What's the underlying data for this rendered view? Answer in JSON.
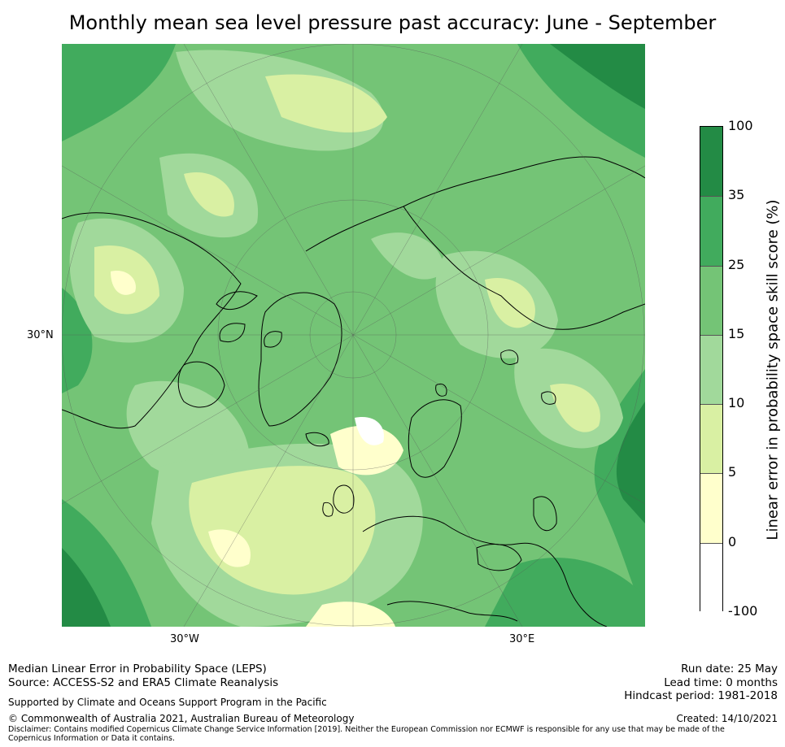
{
  "title": "Monthly mean sea level pressure past accuracy: June - September",
  "map": {
    "lat_labels": [
      {
        "text": "30°N"
      }
    ],
    "lon_labels": [
      {
        "text": "30°W"
      },
      {
        "text": "30°E"
      }
    ]
  },
  "colorbar": {
    "label": "Linear error in probability space skill score (%)",
    "levels": [
      "100",
      "35",
      "25",
      "15",
      "10",
      "5",
      "0",
      "-100"
    ],
    "colors": [
      "#238b45",
      "#41ab5d",
      "#74c476",
      "#a1d99b",
      "#d9f0a3",
      "#ffffcc",
      "#ffffff"
    ]
  },
  "footer": {
    "left_line1": "Median Linear Error in Probability Space (LEPS)",
    "left_line2": "Source: ACCESS-S2 and ERA5 Climate Reanalysis",
    "support": "Supported by Climate and Oceans Support Program in the Pacific",
    "copyright": "© Commonwealth of Australia 2021, Australian Bureau of Meteorology",
    "disclaimer": "Disclaimer: Contains modified Copernicus Climate Change Service Information [2019]. Neither the European Commission nor ECMWF is responsible for any use that may be made of the Copernicus Information or Data it contains.",
    "run_date": "Run date: 25 May",
    "lead_time": "Lead time: 0 months",
    "hindcast": "Hindcast period: 1981-2018",
    "created": "Created: 14/10/2021"
  }
}
